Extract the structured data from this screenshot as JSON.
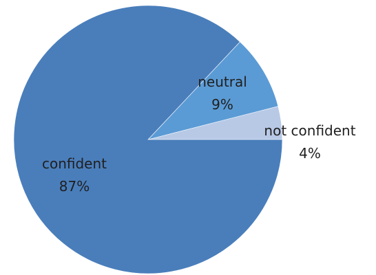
{
  "chart_data": {
    "type": "pie",
    "start_angle_deg": 0,
    "direction": "counterclockwise",
    "slices": [
      {
        "label": "not confident",
        "value": 4,
        "value_label": "4%",
        "color": "#b8c9e6"
      },
      {
        "label": "neutral",
        "value": 9,
        "value_label": "9%",
        "color": "#5b9bd5"
      },
      {
        "label": "confident",
        "value": 87,
        "value_label": "87%",
        "color": "#4a7ebb"
      }
    ],
    "title": "",
    "legend": "none"
  }
}
